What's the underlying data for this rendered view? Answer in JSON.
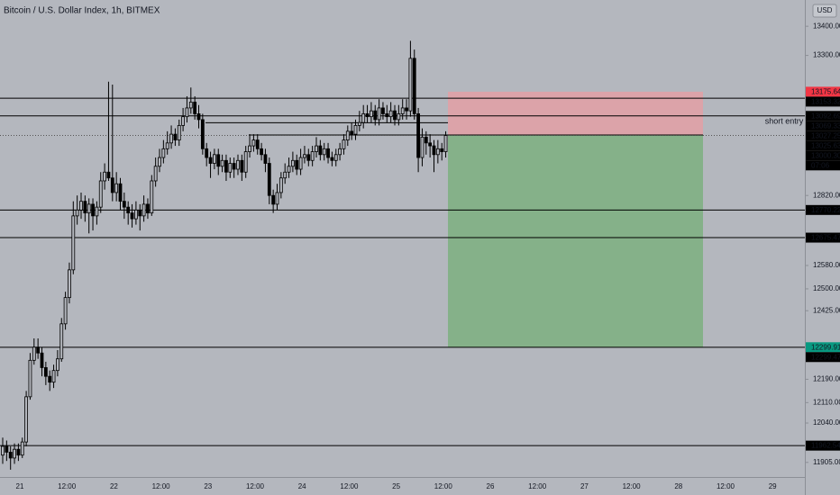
{
  "chart_data": {
    "type": "candlestick",
    "title": "Bitcoin / U.S. Dollar Index, 1h, BITMEX",
    "currency": "USD",
    "open": [
      11930,
      11960,
      11940,
      11920,
      11950,
      11930,
      11975,
      12130,
      12255,
      12300,
      12280,
      12230,
      12200,
      12180,
      12220,
      12260,
      12380,
      12470,
      12565,
      12750,
      12770,
      12800,
      12760,
      12790,
      12750,
      12780,
      12870,
      12900,
      12880,
      12830,
      12860,
      12800,
      12780,
      12760,
      12740,
      12770,
      12750,
      12790,
      12760,
      12870,
      12920,
      12950,
      12980,
      13000,
      13030,
      13010,
      13060,
      13090,
      13120,
      13140,
      13100,
      13080,
      12980,
      12950,
      12930,
      12960,
      12920,
      12940,
      12900,
      12930,
      12910,
      12940,
      12900,
      12970,
      12990,
      13010,
      12980,
      12960,
      12930,
      12820,
      12790,
      12830,
      12880,
      12900,
      12920,
      12940,
      12910,
      12950,
      12960,
      12940,
      12970,
      12990,
      12960,
      12980,
      12950,
      12940,
      12960,
      12980,
      13010,
      13040,
      13030,
      13060,
      13070,
      13100,
      13090,
      13110,
      13080,
      13120,
      13100,
      13090,
      13110,
      13080,
      13100,
      13120,
      13110,
      13290,
      13100,
      12950,
      13020,
      13000,
      12990,
      12960,
      12980,
      12970
    ],
    "high": [
      11990,
      11980,
      11960,
      11970,
      11970,
      11990,
      12150,
      12280,
      12330,
      12330,
      12300,
      12250,
      12220,
      12240,
      12290,
      12400,
      12490,
      12590,
      12800,
      12820,
      12830,
      12820,
      12810,
      12810,
      12800,
      12900,
      12930,
      13210,
      13200,
      12900,
      12880,
      12830,
      12800,
      12790,
      12800,
      12790,
      12820,
      12810,
      12890,
      12950,
      12980,
      13010,
      13040,
      13060,
      13050,
      13080,
      13120,
      13160,
      13190,
      13160,
      13130,
      13100,
      13000,
      12970,
      12980,
      12980,
      12960,
      12960,
      12950,
      12950,
      12960,
      12960,
      12990,
      13030,
      13030,
      13030,
      13000,
      12980,
      12950,
      12840,
      12860,
      12900,
      12930,
      12950,
      12970,
      12960,
      12980,
      12990,
      12980,
      12990,
      13020,
      13010,
      13000,
      13000,
      12970,
      12980,
      13000,
      13030,
      13060,
      13070,
      13080,
      13110,
      13130,
      13130,
      13140,
      13130,
      13150,
      13140,
      13130,
      13140,
      13130,
      13130,
      13150,
      13150,
      13350,
      13320,
      13120,
      13050,
      13040,
      13030,
      13010,
      13010,
      13000,
      13040
    ],
    "low": [
      11900,
      11910,
      11880,
      11900,
      11910,
      11920,
      11960,
      12120,
      12240,
      12260,
      12200,
      12170,
      12150,
      12160,
      12200,
      12250,
      12360,
      12450,
      12550,
      12720,
      12740,
      12730,
      12690,
      12700,
      12720,
      12760,
      12840,
      12870,
      12800,
      12800,
      12770,
      12740,
      12720,
      12710,
      12720,
      12700,
      12730,
      12740,
      12750,
      12850,
      12900,
      12930,
      12960,
      12980,
      12990,
      12990,
      13040,
      13070,
      13100,
      13080,
      13050,
      12960,
      12920,
      12880,
      12910,
      12890,
      12900,
      12870,
      12880,
      12880,
      12890,
      12870,
      12880,
      12950,
      12970,
      12960,
      12940,
      12900,
      12790,
      12760,
      12770,
      12810,
      12860,
      12880,
      12900,
      12890,
      12890,
      12930,
      12920,
      12920,
      12950,
      12940,
      12940,
      12930,
      12920,
      12920,
      12940,
      12960,
      12990,
      13010,
      13010,
      13040,
      13050,
      13070,
      13070,
      13060,
      13060,
      13080,
      13070,
      13070,
      13060,
      13060,
      13080,
      13080,
      13090,
      13080,
      12900,
      12920,
      12960,
      12950,
      12900,
      12930,
      12940,
      12950
    ],
    "close": [
      11960,
      11940,
      11920,
      11950,
      11930,
      11975,
      12130,
      12255,
      12300,
      12280,
      12230,
      12200,
      12180,
      12220,
      12260,
      12380,
      12470,
      12565,
      12750,
      12770,
      12800,
      12760,
      12790,
      12750,
      12780,
      12870,
      12900,
      12880,
      12830,
      12860,
      12800,
      12780,
      12760,
      12740,
      12770,
      12750,
      12790,
      12760,
      12870,
      12920,
      12950,
      12980,
      13000,
      13030,
      13010,
      13060,
      13090,
      13120,
      13140,
      13100,
      13080,
      12980,
      12950,
      12930,
      12960,
      12920,
      12940,
      12900,
      12930,
      12910,
      12940,
      12900,
      12970,
      12990,
      13010,
      12980,
      12960,
      12930,
      12820,
      12790,
      12830,
      12880,
      12900,
      12920,
      12940,
      12910,
      12950,
      12960,
      12940,
      12970,
      12990,
      12960,
      12980,
      12950,
      12940,
      12960,
      12980,
      13010,
      13040,
      13030,
      13060,
      13070,
      13100,
      13090,
      13110,
      13080,
      13120,
      13100,
      13090,
      13110,
      13080,
      13100,
      13120,
      13110,
      13290,
      13100,
      12950,
      13020,
      13000,
      12990,
      12960,
      12980,
      12970,
      13025.63
    ],
    "xticks": [
      "21",
      "12:00",
      "22",
      "12:00",
      "23",
      "12:00",
      "24",
      "12:00",
      "25",
      "12:00",
      "26",
      "12:00",
      "27",
      "12:00",
      "28",
      "12:00",
      "29"
    ],
    "ylim": [
      11855,
      13490
    ],
    "yticks": [
      {
        "value": 13400,
        "label": "13400.00"
      },
      {
        "value": 13300,
        "label": "13300.00"
      },
      {
        "value": 12820,
        "label": "12820.00"
      },
      {
        "value": 12580,
        "label": "12580.00"
      },
      {
        "value": 12500,
        "label": "12500.00"
      },
      {
        "value": 12425,
        "label": "12425.00"
      },
      {
        "value": 12190,
        "label": "12190.00"
      },
      {
        "value": 12110,
        "label": "12110.00"
      },
      {
        "value": 12040,
        "label": "12040.00"
      },
      {
        "value": 11905,
        "label": "11905.00"
      }
    ],
    "price_labels": [
      {
        "value": 13175.64,
        "color": "#f23645",
        "line": false
      },
      {
        "value": 13153.32,
        "color": "#000000",
        "line": true
      },
      {
        "value": 13092.69,
        "color": "#000000",
        "line": true
      },
      {
        "value": 13069.33,
        "color": "#000000",
        "line": false
      },
      {
        "value": 13027.25,
        "color": "#000000",
        "line": false
      },
      {
        "value": 13025.63,
        "color": "#000000",
        "line": false
      },
      {
        "value": 13000.3,
        "label": "13000.30",
        "color": "#000000",
        "line": false
      },
      {
        "value": 12770.22,
        "color": "#000000",
        "line": true
      },
      {
        "value": 12675.47,
        "color": "#000000",
        "line": true
      },
      {
        "value": 12299.91,
        "color": "#089981",
        "line": false
      },
      {
        "value": 12299.47,
        "color": "#000000",
        "line": true
      },
      {
        "value": 11962.54,
        "color": "#000000",
        "line": true
      }
    ],
    "countdown": "07:06",
    "position": {
      "side_label": "short entry",
      "entry": 13027.25,
      "stop": 13175.64,
      "target": 12299.91,
      "stop_color": "#e3a0a6",
      "target_color": "#7fb083"
    }
  }
}
